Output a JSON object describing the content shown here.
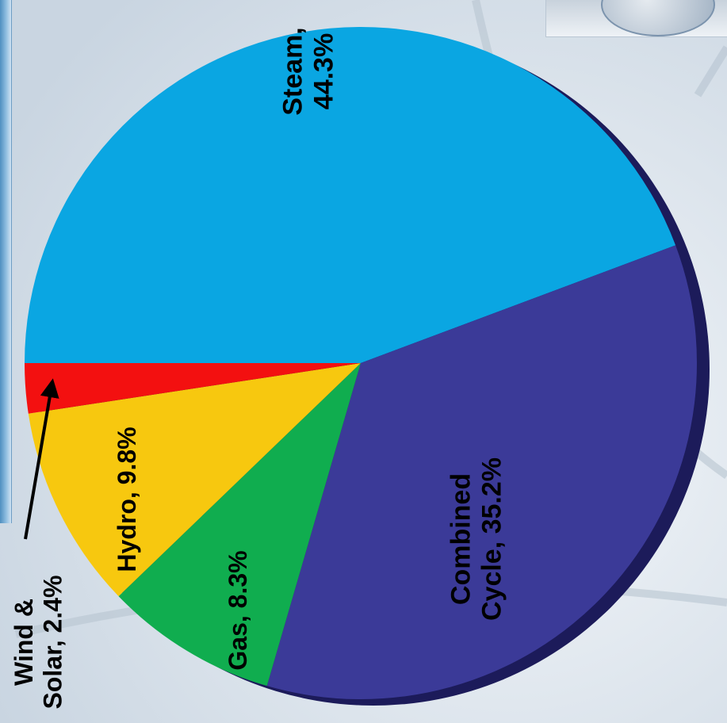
{
  "chart_data": {
    "type": "pie",
    "title": "",
    "slices": [
      {
        "label": "Steam",
        "value": 44.3,
        "color": "#0aa6e2",
        "text_lines": [
          "Steam,",
          "44.3%"
        ]
      },
      {
        "label": "Combined Cycle",
        "value": 35.2,
        "color": "#3b3a98",
        "text_lines": [
          "Combined",
          "Cycle, 35.2%"
        ]
      },
      {
        "label": "Gas",
        "value": 8.3,
        "color": "#10ad4f",
        "text_lines": [
          "Gas, 8.3%"
        ]
      },
      {
        "label": "Hydro",
        "value": 9.8,
        "color": "#f7c80f",
        "text_lines": [
          "Hydro, 9.8%"
        ]
      },
      {
        "label": "Wind & Solar",
        "value": 2.4,
        "color": "#f31010",
        "text_lines": [
          "Wind &",
          "Solar, 2.4%"
        ]
      }
    ],
    "legend": "none",
    "label_orientation": "rotated-90-ccw"
  }
}
